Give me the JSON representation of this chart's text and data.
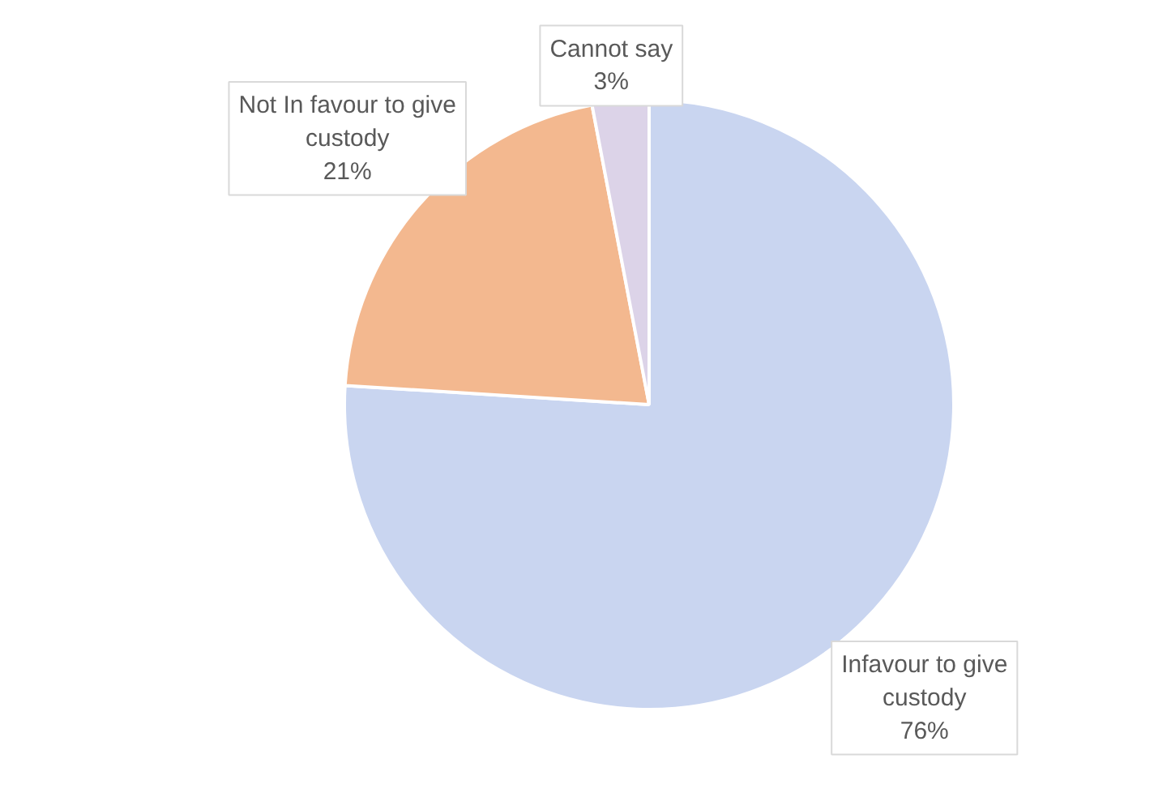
{
  "chart_data": {
    "type": "pie",
    "categories": [
      "Infavour to give custody",
      "Not In favour to give custody",
      "Cannot say"
    ],
    "values": [
      76,
      21,
      3
    ],
    "value_labels": [
      "76%",
      "21%",
      "3%"
    ],
    "colors": [
      "#c9d5f0",
      "#f3b88f",
      "#dcd3e8"
    ]
  }
}
